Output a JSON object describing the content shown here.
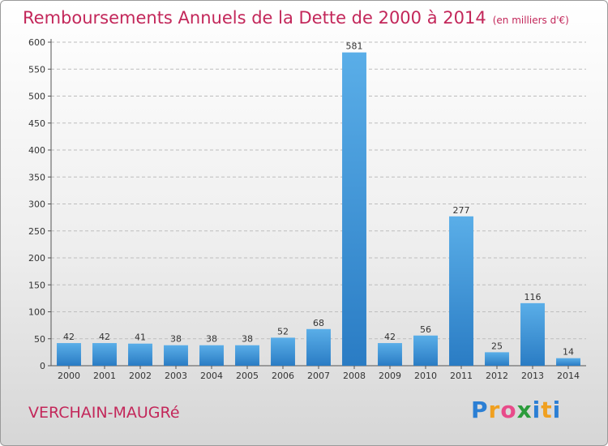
{
  "header": {
    "title": "Remboursements Annuels de la Dette de 2000 à 2014",
    "unit": "(en milliers d'€)"
  },
  "footer": {
    "commune": "VERCHAIN-MAUGRé",
    "logo": "Proxiti"
  },
  "colors": {
    "accent": "#c3275a",
    "bar_light": "#5aaee8",
    "bar_dark": "#2a7cc4"
  },
  "chart_data": {
    "type": "bar",
    "title": "Remboursements Annuels de la Dette de 2000 à 2014",
    "subtitle": "(en milliers d'€)",
    "xlabel": "",
    "ylabel": "",
    "categories": [
      "2000",
      "2001",
      "2002",
      "2003",
      "2004",
      "2005",
      "2006",
      "2007",
      "2008",
      "2009",
      "2010",
      "2011",
      "2012",
      "2013",
      "2014"
    ],
    "values": [
      42,
      42,
      41,
      38,
      38,
      38,
      52,
      68,
      581,
      42,
      56,
      277,
      25,
      116,
      14
    ],
    "ylim": [
      0,
      600
    ],
    "yticks": [
      0,
      50,
      100,
      150,
      200,
      250,
      300,
      350,
      400,
      450,
      500,
      550,
      600
    ],
    "grid": true,
    "data_labels": true
  }
}
